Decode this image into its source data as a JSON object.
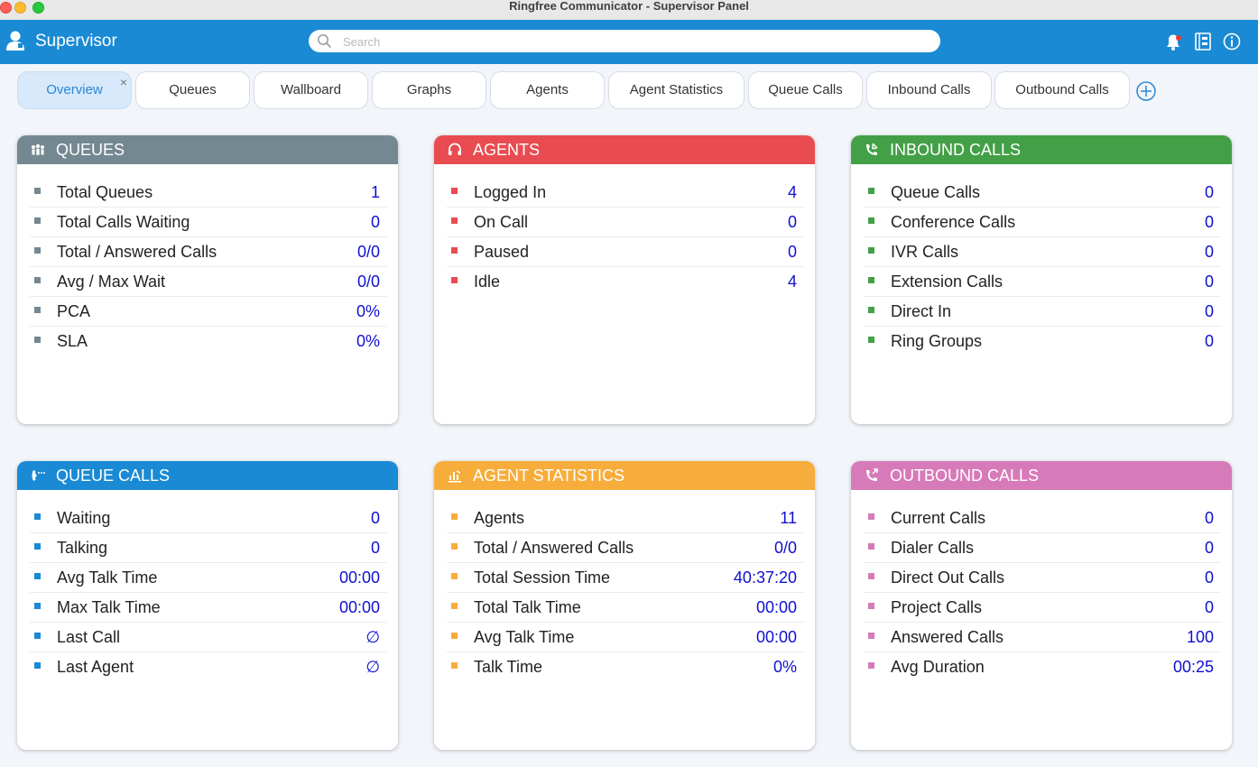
{
  "window": {
    "title": "Ringfree Communicator - Supervisor Panel"
  },
  "appbar": {
    "title": "Supervisor",
    "search_placeholder": "Search",
    "icons": [
      "user-icon",
      "search-icon",
      "notification-bell-icon",
      "phonebook-icon",
      "info-icon"
    ]
  },
  "tabs": [
    {
      "label": "Overview",
      "active": true,
      "close": "×"
    },
    {
      "label": "Queues"
    },
    {
      "label": "Wallboard"
    },
    {
      "label": "Graphs"
    },
    {
      "label": "Agents"
    },
    {
      "label": "Agent Statistics"
    },
    {
      "label": "Queue Calls"
    },
    {
      "label": "Inbound Calls"
    },
    {
      "label": "Outbound Calls"
    }
  ],
  "colors": {
    "queues": "#748891",
    "agents": "#e84c51",
    "inbound": "#43a047",
    "queue_calls": "#1a8ad4",
    "agent_statistics": "#f7ad3c",
    "outbound": "#d77ab9",
    "value": "#1010d0"
  },
  "cards": {
    "queues": {
      "title": "QUEUES",
      "icon": "people-icon",
      "rows": [
        {
          "label": "Total Queues",
          "value": "1"
        },
        {
          "label": "Total Calls Waiting",
          "value": "0"
        },
        {
          "label": "Total / Answered Calls",
          "value": "0/0"
        },
        {
          "label": "Avg / Max Wait",
          "value": "0/0"
        },
        {
          "label": "PCA",
          "value": "0%"
        },
        {
          "label": "SLA",
          "value": "0%"
        }
      ]
    },
    "agents": {
      "title": "AGENTS",
      "icon": "headset-icon",
      "rows": [
        {
          "label": "Logged In",
          "value": "4"
        },
        {
          "label": "On Call",
          "value": "0"
        },
        {
          "label": "Paused",
          "value": "0"
        },
        {
          "label": "Idle",
          "value": "4"
        }
      ]
    },
    "inbound": {
      "title": "INBOUND CALLS",
      "icon": "phone-incoming-icon",
      "rows": [
        {
          "label": "Queue Calls",
          "value": "0"
        },
        {
          "label": "Conference Calls",
          "value": "0"
        },
        {
          "label": "IVR Calls",
          "value": "0"
        },
        {
          "label": "Extension Calls",
          "value": "0"
        },
        {
          "label": "Direct In",
          "value": "0"
        },
        {
          "label": "Ring Groups",
          "value": "0"
        }
      ]
    },
    "queue_calls": {
      "title": "QUEUE CALLS",
      "icon": "call-waiting-icon",
      "rows": [
        {
          "label": "Waiting",
          "value": "0"
        },
        {
          "label": "Talking",
          "value": "0"
        },
        {
          "label": "Avg Talk Time",
          "value": "00:00"
        },
        {
          "label": "Max Talk Time",
          "value": "00:00"
        },
        {
          "label": "Last Call",
          "value": "∅"
        },
        {
          "label": "Last Agent",
          "value": "∅"
        }
      ]
    },
    "agent_statistics": {
      "title": "AGENT STATISTICS",
      "icon": "stats-icon",
      "rows": [
        {
          "label": "Agents",
          "value": "11"
        },
        {
          "label": "Total / Answered Calls",
          "value": "0/0"
        },
        {
          "label": "Total Session Time",
          "value": "40:37:20"
        },
        {
          "label": "Total Talk Time",
          "value": "00:00"
        },
        {
          "label": "Avg Talk Time",
          "value": "00:00"
        },
        {
          "label": "Talk Time",
          "value": "0%"
        }
      ]
    },
    "outbound": {
      "title": "OUTBOUND CALLS",
      "icon": "phone-outgoing-icon",
      "rows": [
        {
          "label": "Current Calls",
          "value": "0"
        },
        {
          "label": "Dialer Calls",
          "value": "0"
        },
        {
          "label": "Direct Out Calls",
          "value": "0"
        },
        {
          "label": "Project Calls",
          "value": "0"
        },
        {
          "label": "Answered Calls",
          "value": "100"
        },
        {
          "label": "Avg Duration",
          "value": "00:25"
        }
      ]
    }
  }
}
